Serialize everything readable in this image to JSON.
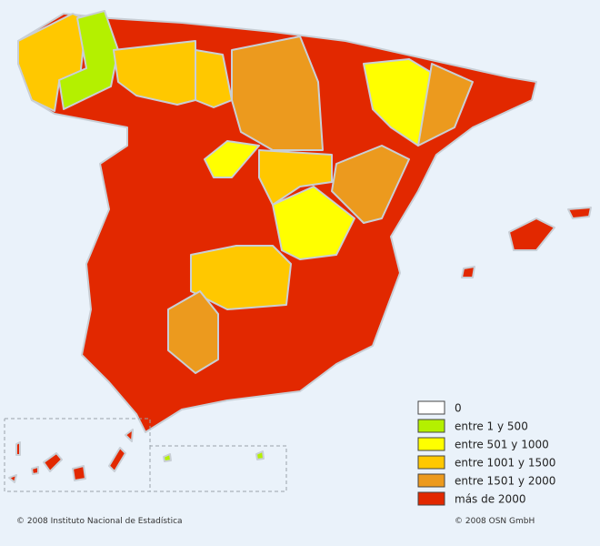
{
  "legend": [
    {
      "label": "0",
      "color": "#ffffff"
    },
    {
      "label": "entre 1 y 500",
      "color": "#b4f000"
    },
    {
      "label": "entre 501 y 1000",
      "color": "#ffff00"
    },
    {
      "label": "entre 1001 y 1500",
      "color": "#ffc800"
    },
    {
      "label": "entre 1501 y 2000",
      "color": "#ec9a1e"
    },
    {
      "label": "más de 2000",
      "color": "#e22800"
    }
  ],
  "credits": {
    "left": "© 2008 Instituto Nacional de Estadística",
    "right": "© 2008 OSN GmbH"
  }
}
